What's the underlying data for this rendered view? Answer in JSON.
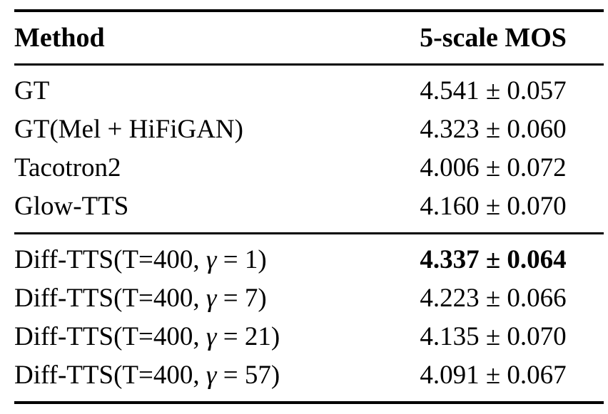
{
  "table": {
    "title": "Diff-TTS MOS results table",
    "header": {
      "method": "Method",
      "mos": "5-scale MOS"
    },
    "rows": [
      {
        "method_pre": "GT",
        "method_gamma": "",
        "method_post": "",
        "mos": "4.541 ± 0.057",
        "mos_value": 4.541,
        "mos_error": 0.057,
        "bold": false
      },
      {
        "method_pre": "GT(Mel + HiFiGAN)",
        "method_gamma": "",
        "method_post": "",
        "mos": "4.323 ± 0.060",
        "mos_value": 4.323,
        "mos_error": 0.06,
        "bold": false
      },
      {
        "method_pre": "Tacotron2",
        "method_gamma": "",
        "method_post": "",
        "mos": "4.006 ± 0.072",
        "mos_value": 4.006,
        "mos_error": 0.072,
        "bold": false
      },
      {
        "method_pre": "Glow-TTS",
        "method_gamma": "",
        "method_post": "",
        "mos": "4.160 ± 0.070",
        "mos_value": 4.16,
        "mos_error": 0.07,
        "bold": false
      },
      {
        "method_pre": "Diff-TTS(T=400, ",
        "method_gamma": "γ",
        "method_post": " = 1)",
        "mos": "4.337 ± 0.064",
        "mos_value": 4.337,
        "mos_error": 0.064,
        "bold": true
      },
      {
        "method_pre": "Diff-TTS(T=400, ",
        "method_gamma": "γ",
        "method_post": " = 7)",
        "mos": "4.223 ± 0.066",
        "mos_value": 4.223,
        "mos_error": 0.066,
        "bold": false
      },
      {
        "method_pre": "Diff-TTS(T=400, ",
        "method_gamma": "γ",
        "method_post": " = 21)",
        "mos": "4.135 ± 0.070",
        "mos_value": 4.135,
        "mos_error": 0.07,
        "bold": false
      },
      {
        "method_pre": "Diff-TTS(T=400, ",
        "method_gamma": "γ",
        "method_post": " = 57)",
        "mos": "4.091 ± 0.067",
        "mos_value": 4.091,
        "mos_error": 0.067,
        "bold": false
      }
    ],
    "colors": {
      "text": "#000000",
      "background": "#ffffff",
      "rule": "#000000"
    }
  }
}
